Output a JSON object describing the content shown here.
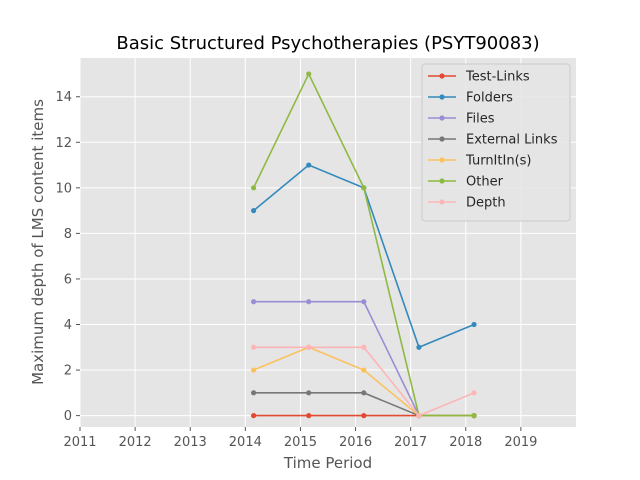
{
  "chart_data": {
    "type": "line",
    "title": "Basic Structured Psychotherapies (PSYT90083)",
    "xlabel": "Time Period",
    "ylabel": "Maximum depth of LMS content items",
    "xlim": [
      2011,
      2020
    ],
    "ylim": [
      -0.5,
      15.7
    ],
    "xticks": [
      2011,
      2012,
      2013,
      2014,
      2015,
      2016,
      2017,
      2018,
      2019
    ],
    "yticks": [
      0,
      2,
      4,
      6,
      8,
      10,
      12,
      14
    ],
    "grid": true,
    "legend_position": "top-right",
    "x": [
      2014.15,
      2015.15,
      2016.15,
      2017.15,
      2018.15
    ],
    "series": [
      {
        "name": "Test-Links",
        "color": "#E24A33",
        "values": [
          0,
          0,
          0,
          0,
          0
        ]
      },
      {
        "name": "Folders",
        "color": "#348ABD",
        "values": [
          9,
          11,
          10,
          3,
          4
        ]
      },
      {
        "name": "Files",
        "color": "#988ED5",
        "values": [
          5,
          5,
          5,
          0,
          0
        ]
      },
      {
        "name": "External Links",
        "color": "#777777",
        "values": [
          1,
          1,
          1,
          0,
          0
        ]
      },
      {
        "name": "TurnItIn(s)",
        "color": "#FBC15E",
        "values": [
          2,
          3,
          2,
          0,
          0
        ]
      },
      {
        "name": "Other",
        "color": "#8EBA42",
        "values": [
          10,
          15,
          10,
          0,
          0
        ]
      },
      {
        "name": "Depth",
        "color": "#FFB5B8",
        "values": [
          3,
          3,
          3,
          0,
          1
        ]
      }
    ]
  }
}
